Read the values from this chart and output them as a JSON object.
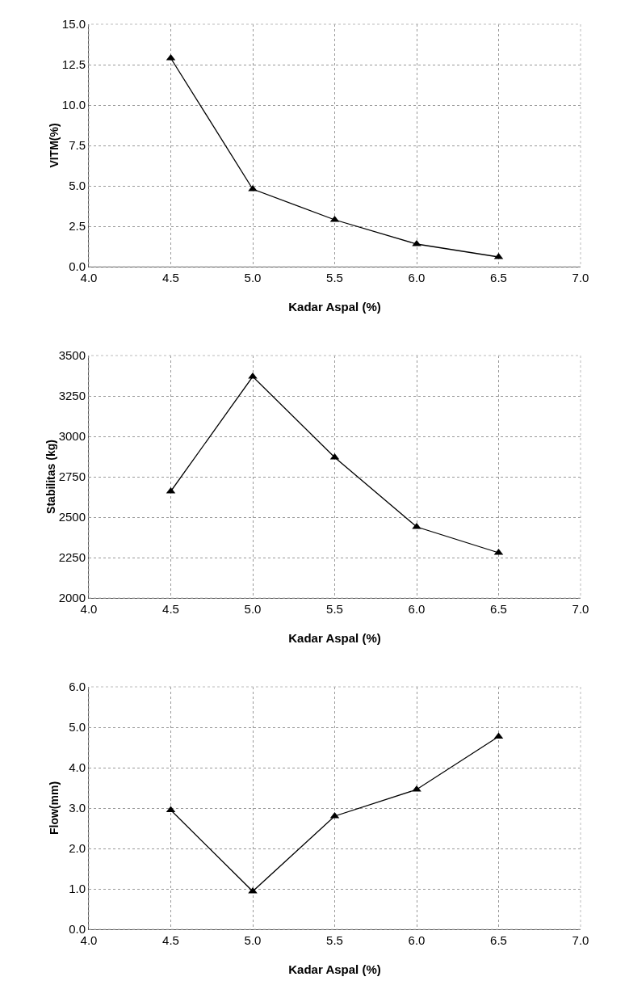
{
  "chart_data": [
    {
      "type": "line",
      "xlabel": "Kadar Aspal (%)",
      "ylabel": "VITM(%)",
      "x": [
        4.5,
        5.0,
        5.5,
        6.0,
        6.5
      ],
      "series": [
        {
          "color": "#000000",
          "values": [
            12.9,
            4.8,
            2.9,
            1.4,
            0.6
          ]
        }
      ],
      "xlim": [
        4.0,
        7.0
      ],
      "xticks": [
        {
          "value": 4,
          "label": "4.0"
        },
        4.5,
        {
          "value": 5,
          "label": "5.0"
        },
        5.5,
        {
          "value": 6,
          "label": "6.0"
        },
        6.5,
        {
          "value": 7,
          "label": "7.0"
        }
      ],
      "ylim": [
        0,
        15
      ],
      "yticks": [
        {
          "value": 0,
          "label": "0.0"
        },
        2.5,
        {
          "value": 5,
          "label": "5.0"
        },
        7.5,
        {
          "value": 10,
          "label": "10.0"
        },
        12.5,
        {
          "value": 15,
          "label": "15.0"
        }
      ],
      "grid": true,
      "marker": "triangle",
      "line_style": "solid"
    },
    {
      "type": "line",
      "xlabel": "Kadar Aspal (%)",
      "ylabel": "Stabilitas (kg)",
      "x": [
        4.5,
        5.0,
        5.5,
        6.0,
        6.5
      ],
      "series": [
        {
          "color": "#000000",
          "values": [
            2660,
            3370,
            2870,
            2440,
            2280
          ]
        }
      ],
      "xlim": [
        4.0,
        7.0
      ],
      "xticks": [
        {
          "value": 4,
          "label": "4.0"
        },
        4.5,
        {
          "value": 5,
          "label": "5.0"
        },
        5.5,
        {
          "value": 6,
          "label": "6.0"
        },
        6.5,
        {
          "value": 7,
          "label": "7.0"
        }
      ],
      "ylim": [
        2000,
        3500
      ],
      "yticks": [
        2000,
        2250,
        2500,
        2750,
        3000,
        3250,
        3500
      ],
      "grid": true,
      "marker": "triangle",
      "line_style": "solid"
    },
    {
      "type": "line",
      "xlabel": "Kadar Aspal (%)",
      "ylabel": "Flow(mm)",
      "x": [
        4.5,
        5.0,
        5.5,
        6.0,
        6.5
      ],
      "series": [
        {
          "color": "#000000",
          "values": [
            2.95,
            0.94,
            2.8,
            3.46,
            4.77
          ]
        }
      ],
      "xlim": [
        4.0,
        7.0
      ],
      "xticks": [
        {
          "value": 4,
          "label": "4.0"
        },
        4.5,
        {
          "value": 5,
          "label": "5.0"
        },
        5.5,
        {
          "value": 6,
          "label": "6.0"
        },
        6.5,
        {
          "value": 7,
          "label": "7.0"
        }
      ],
      "ylim": [
        0,
        6
      ],
      "yticks": [
        {
          "value": 0,
          "label": "0.0"
        },
        {
          "value": 1,
          "label": "1.0"
        },
        {
          "value": 2,
          "label": "2.0"
        },
        {
          "value": 3,
          "label": "3.0"
        },
        {
          "value": 4,
          "label": "4.0"
        },
        {
          "value": 5,
          "label": "5.0"
        },
        {
          "value": 6,
          "label": "6.0"
        }
      ],
      "grid": true,
      "marker": "triangle",
      "line_style": "solid"
    }
  ]
}
